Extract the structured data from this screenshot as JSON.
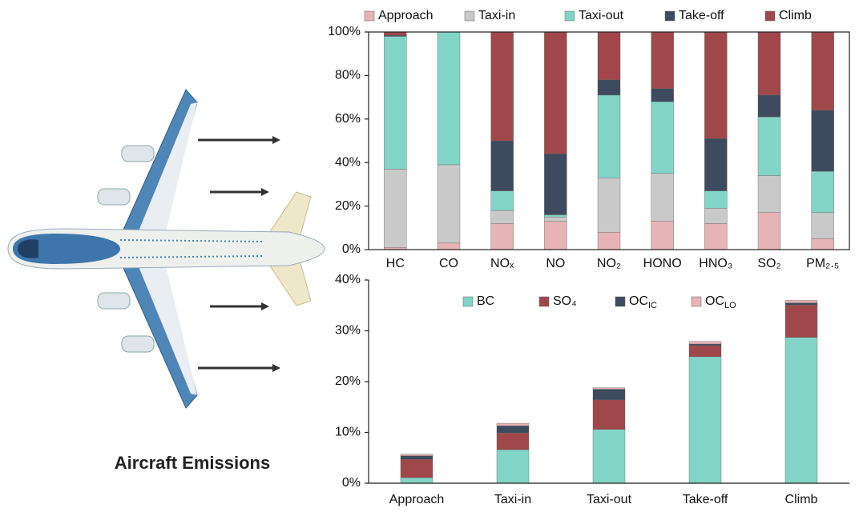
{
  "caption": "Aircraft Emissions",
  "chart_data": [
    {
      "type": "stacked_bar",
      "categories": [
        "HC",
        "CO",
        "NOₓ",
        "NO",
        "NO₂",
        "HONO",
        "HNO₃",
        "SO₂",
        "PM₂.₅"
      ],
      "series": [
        {
          "name": "Approach",
          "color": "#e6b3b6",
          "values": [
            1,
            3,
            12,
            13,
            8,
            13,
            12,
            17,
            5
          ]
        },
        {
          "name": "Taxi-in",
          "color": "#c9c9c9",
          "values": [
            36,
            36,
            6,
            2,
            25,
            22,
            7,
            17,
            12
          ]
        },
        {
          "name": "Taxi-out",
          "color": "#82d4c6",
          "values": [
            61,
            61,
            9,
            1,
            38,
            33,
            8,
            27,
            19
          ]
        },
        {
          "name": "Take-off",
          "color": "#3e4a5d",
          "values": [
            0.5,
            0,
            23,
            28,
            7,
            6,
            24,
            10,
            28
          ]
        },
        {
          "name": "Climb",
          "color": "#a0474b",
          "values": [
            1.5,
            0,
            50,
            56,
            22,
            26,
            49,
            29,
            36
          ]
        }
      ],
      "ylim": [
        0,
        100
      ],
      "yticks": [
        {
          "value": 0,
          "label": "0%"
        },
        {
          "value": 20,
          "label": "20%"
        },
        {
          "value": 40,
          "label": "40%"
        },
        {
          "value": 60,
          "label": "60%"
        },
        {
          "value": 80,
          "label": "80%"
        },
        {
          "value": 100,
          "label": "100%"
        }
      ],
      "legend": "top"
    },
    {
      "type": "stacked_bar",
      "categories": [
        "Approach",
        "Taxi-in",
        "Taxi-out",
        "Take-off",
        "Climb"
      ],
      "series": [
        {
          "name": "BC",
          "color": "#82d4c6",
          "values": [
            1.1,
            6.6,
            10.6,
            24.9,
            28.7
          ]
        },
        {
          "name": "SO₄",
          "color": "#a0474b",
          "values": [
            3.6,
            3.3,
            5.8,
            2.2,
            6.4
          ]
        },
        {
          "name": "OC",
          "subscript": "IC",
          "color": "#3e4a5d",
          "values": [
            0.7,
            1.4,
            2.1,
            0.3,
            0.4
          ]
        },
        {
          "name": "OC",
          "subscript": "LO",
          "color": "#e6b3b6",
          "values": [
            0.3,
            0.5,
            0.3,
            0.5,
            0.5
          ]
        }
      ],
      "ylim": [
        0,
        40
      ],
      "yticks": [
        {
          "value": 0,
          "label": "0%"
        },
        {
          "value": 10,
          "label": "10%"
        },
        {
          "value": 20,
          "label": "20%"
        },
        {
          "value": 30,
          "label": "30%"
        },
        {
          "value": 40,
          "label": "40%"
        }
      ],
      "legend": "inside-top"
    }
  ]
}
